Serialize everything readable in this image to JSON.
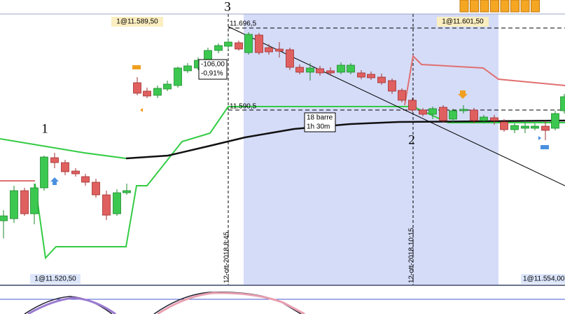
{
  "wave_labels": [
    "3",
    "1",
    "2"
  ],
  "price_tags": [
    "1@11.589,50",
    "1@11.601,50",
    "1@11.520,50",
    "1@11.554,00"
  ],
  "levels": [
    "11.696,5",
    "11.590,5"
  ],
  "change_box": [
    "-106,00",
    "-0,91%"
  ],
  "duration_box": [
    "18 barre",
    "1h 30m"
  ],
  "date_labels": [
    "12-ott-2018 8:45",
    "12-ott-2018 10:15"
  ]
}
